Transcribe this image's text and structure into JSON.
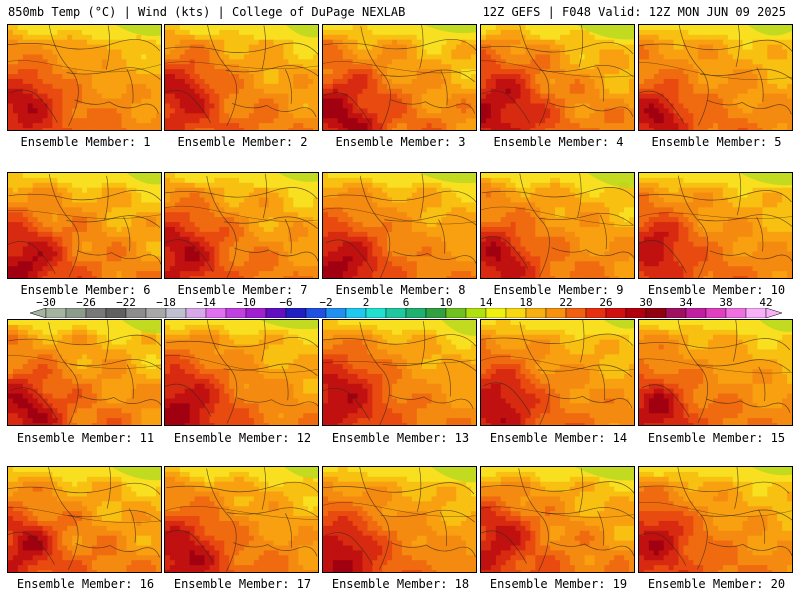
{
  "header": {
    "left": "850mb Temp (°C) | Wind (kts) | College of DuPage NEXLAB",
    "right": "12Z GEFS | F048 Valid: 12Z MON JUN 09 2025"
  },
  "caption_prefix": "Ensemble Member: ",
  "members": [
    {
      "number": "1",
      "label": "Ensemble Member: 1",
      "seed": 11
    },
    {
      "number": "2",
      "label": "Ensemble Member: 2",
      "seed": 23
    },
    {
      "number": "3",
      "label": "Ensemble Member: 3",
      "seed": 37
    },
    {
      "number": "4",
      "label": "Ensemble Member: 4",
      "seed": 41
    },
    {
      "number": "5",
      "label": "Ensemble Member: 5",
      "seed": 53
    },
    {
      "number": "6",
      "label": "Ensemble Member: 6",
      "seed": 67
    },
    {
      "number": "7",
      "label": "Ensemble Member: 7",
      "seed": 71
    },
    {
      "number": "8",
      "label": "Ensemble Member: 8",
      "seed": 83
    },
    {
      "number": "9",
      "label": "Ensemble Member: 9",
      "seed": 97
    },
    {
      "number": "10",
      "label": "Ensemble Member: 10",
      "seed": 101
    },
    {
      "number": "11",
      "label": "Ensemble Member: 11",
      "seed": 113
    },
    {
      "number": "12",
      "label": "Ensemble Member: 12",
      "seed": 127
    },
    {
      "number": "13",
      "label": "Ensemble Member: 13",
      "seed": 131
    },
    {
      "number": "14",
      "label": "Ensemble Member: 14",
      "seed": 149
    },
    {
      "number": "15",
      "label": "Ensemble Member: 15",
      "seed": 151
    },
    {
      "number": "16",
      "label": "Ensemble Member: 16",
      "seed": 163
    },
    {
      "number": "17",
      "label": "Ensemble Member: 17",
      "seed": 173
    },
    {
      "number": "18",
      "label": "Ensemble Member: 18",
      "seed": 181
    },
    {
      "number": "19",
      "label": "Ensemble Member: 19",
      "seed": 191
    },
    {
      "number": "20",
      "label": "Ensemble Member: 20",
      "seed": 199
    }
  ],
  "colorbar": {
    "tick_labels": [
      "-30",
      "-26",
      "-22",
      "-18",
      "-14",
      "-10",
      "-6",
      "-2",
      "2",
      "6",
      "10",
      "14",
      "18",
      "22",
      "26",
      "30",
      "34",
      "38",
      "42"
    ],
    "min": -30,
    "max": 42,
    "step": 2,
    "colors": [
      "#a4b4a0",
      "#8c9c8c",
      "#787878",
      "#606060",
      "#8c8c8c",
      "#a8a8a8",
      "#c0c0d0",
      "#d8a8e8",
      "#e070f0",
      "#c040e0",
      "#a020d0",
      "#6010c0",
      "#2020c0",
      "#2050e0",
      "#2090f0",
      "#20c8f0",
      "#20e0d0",
      "#20c8a0",
      "#20b070",
      "#30a040",
      "#70c020",
      "#b0e010",
      "#f0f010",
      "#f8d810",
      "#f8b010",
      "#f89010",
      "#f06010",
      "#e83010",
      "#d01010",
      "#b00010",
      "#900010",
      "#a01060",
      "#c020a0",
      "#e040c0",
      "#f070e0",
      "#f8b0f8"
    ]
  }
}
